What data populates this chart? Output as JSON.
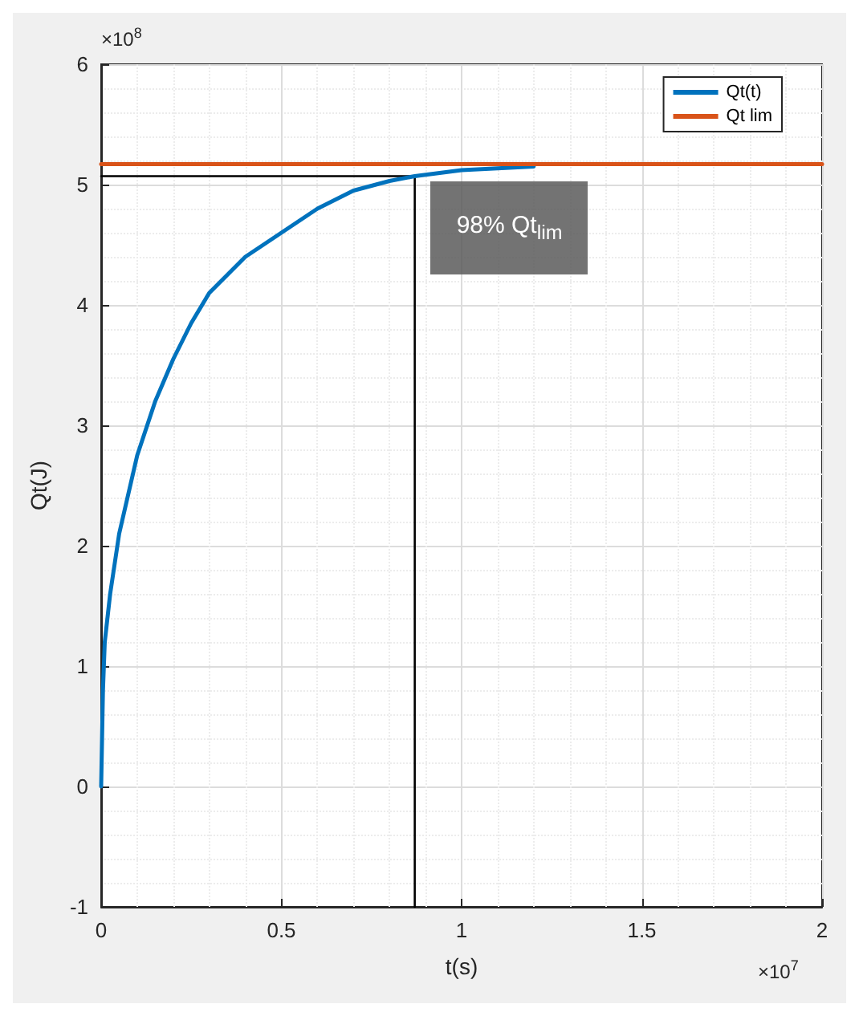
{
  "chart_data": {
    "type": "line",
    "xlabel": "t(s)",
    "ylabel": "Qt(J)",
    "xlim": [
      0,
      2
    ],
    "xticks": [
      0,
      0.5,
      1,
      1.5,
      2
    ],
    "ylim": [
      -1,
      6
    ],
    "yticks": [
      -1,
      0,
      1,
      2,
      3,
      4,
      5,
      6
    ],
    "grid": true,
    "legend": "top right",
    "marker": "none",
    "line_style": "solid",
    "series": [
      {
        "name": "Qt(t)",
        "color": "#0072bd",
        "x": [
          0,
          0.005,
          0.01,
          0.025,
          0.05,
          0.1,
          0.15,
          0.2,
          0.25,
          0.3,
          0.4,
          0.5,
          0.6,
          0.7,
          0.8,
          0.87,
          1,
          1.2
        ],
        "values": [
          0,
          0.8,
          1.2,
          1.6,
          2.1,
          2.75,
          3.2,
          3.55,
          3.85,
          4.1,
          4.4,
          4.6,
          4.8,
          4.95,
          5.03,
          5.07,
          5.12,
          5.15
        ]
      },
      {
        "name": "Qt lim",
        "color": "#d95319",
        "x": [
          0,
          2
        ],
        "values": [
          5.17,
          5.17
        ]
      },
      {
        "color": "#000000",
        "x": [
          0,
          0.87,
          0.87
        ],
        "values": [
          5.07,
          5.07,
          -1
        ]
      }
    ],
    "annotations": [
      "×10$^{8}$",
      "×10$^{7}$",
      {
        "text": "98% Qt$_{lim}$",
        "x": 0.87,
        "y": 5.07
      }
    ]
  }
}
